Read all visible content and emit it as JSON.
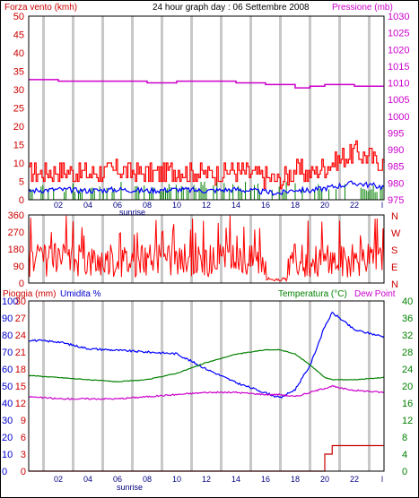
{
  "header": {
    "left_label": "Forza vento (kmh)",
    "title": "24 hour graph day : 06 Settembre 2008",
    "right_label": "Pressione (mb)"
  },
  "colors": {
    "wind_speed": "#ff0000",
    "wind_gust": "#ff0000",
    "wind_avg": "#0000ff",
    "wind_calm": "#008000",
    "pressure": "#cc00cc",
    "direction": "#ff0000",
    "temperature": "#008000",
    "humidity": "#0000ff",
    "dewpoint": "#cc00cc",
    "rain": "#cc0000",
    "grid_vertical": "#c8c8c8"
  },
  "x_axis": {
    "ticks": [
      "02",
      "04",
      "06",
      "08",
      "10",
      "12",
      "14",
      "16",
      "18",
      "20",
      "22",
      "l"
    ],
    "sunrise_label": "sunrise"
  },
  "panel_wind": {
    "left_ticks": [
      "0",
      "5",
      "10",
      "15",
      "20",
      "25",
      "30",
      "35",
      "40",
      "45",
      "50"
    ],
    "right_ticks": [
      "975",
      "980",
      "985",
      "990",
      "995",
      "1000",
      "1005",
      "1010",
      "1015",
      "1020",
      "1025",
      "1030"
    ]
  },
  "panel_direction": {
    "left_ticks": [
      "0",
      "90",
      "180",
      "270",
      "360"
    ],
    "right_letters": [
      "N",
      "W",
      "S",
      "E",
      "N"
    ]
  },
  "panel_temp": {
    "header_left_a": "Pioggia (mm)",
    "header_left_b": "Umidita %",
    "header_right_a": "Temperatura (°C)",
    "header_right_b": "Dew Point",
    "rain_ticks": [
      "0",
      "3",
      "6",
      "9",
      "12",
      "15",
      "18",
      "21",
      "24",
      "27",
      "30"
    ],
    "humidity_ticks": [
      "0",
      "10",
      "20",
      "30",
      "40",
      "50",
      "60",
      "70",
      "80",
      "90",
      "100"
    ],
    "temp_ticks": [
      "0",
      "4",
      "8",
      "12",
      "16",
      "20",
      "24",
      "28",
      "32",
      "36",
      "40"
    ]
  },
  "chart_data": [
    {
      "type": "line",
      "panel": "wind_pressure",
      "x": [
        0,
        2,
        4,
        6,
        8,
        10,
        12,
        14,
        16,
        17,
        18,
        19,
        20,
        22,
        24
      ],
      "series": [
        {
          "name": "Forza vento (kmh)",
          "values": [
            7,
            8,
            7,
            8,
            7,
            8,
            7,
            8,
            6,
            5,
            8,
            7,
            9,
            13,
            10
          ]
        },
        {
          "name": "Pressione (mb)",
          "values": [
            1011,
            1010.5,
            1010.5,
            1010.5,
            1010,
            1010.5,
            1010.5,
            1010,
            1009.5,
            1009.5,
            1008.5,
            1009,
            1009.5,
            1009,
            1009
          ]
        }
      ],
      "ylim_left": [
        0,
        50
      ],
      "ylim_right": [
        975,
        1030
      ]
    },
    {
      "type": "scatter",
      "panel": "wind_direction",
      "ylim": [
        0,
        360
      ]
    },
    {
      "type": "line",
      "panel": "temp_hum_rain",
      "x": [
        0,
        2,
        4,
        6,
        8,
        10,
        12,
        14,
        16,
        17,
        18,
        19,
        20,
        20.5,
        21,
        22,
        24
      ],
      "series": [
        {
          "name": "Umidita %",
          "values": [
            77,
            76,
            72,
            71,
            70,
            69,
            60,
            52,
            46,
            43,
            48,
            62,
            85,
            93,
            90,
            83,
            79
          ]
        },
        {
          "name": "Temperatura (°C)",
          "values": [
            22.5,
            22,
            21.5,
            21,
            21.5,
            23,
            25.5,
            27.5,
            28.5,
            28.5,
            27.5,
            25,
            22,
            21.5,
            21.5,
            21.5,
            22
          ]
        },
        {
          "name": "Dew Point",
          "values": [
            17.5,
            17,
            17,
            17,
            17.5,
            18,
            18.5,
            18.5,
            18,
            18,
            17.5,
            18.5,
            19.5,
            20,
            19.5,
            19,
            18.5
          ]
        },
        {
          "name": "Pioggia (mm)",
          "values": [
            0,
            0,
            0,
            0,
            0,
            0,
            0,
            0,
            0,
            0,
            0,
            0,
            3,
            4.5,
            4.5,
            4.5,
            4.5
          ]
        }
      ],
      "ylim_left_rain": [
        0,
        30
      ],
      "ylim_left_humidity": [
        0,
        100
      ],
      "ylim_right": [
        0,
        40
      ]
    }
  ]
}
